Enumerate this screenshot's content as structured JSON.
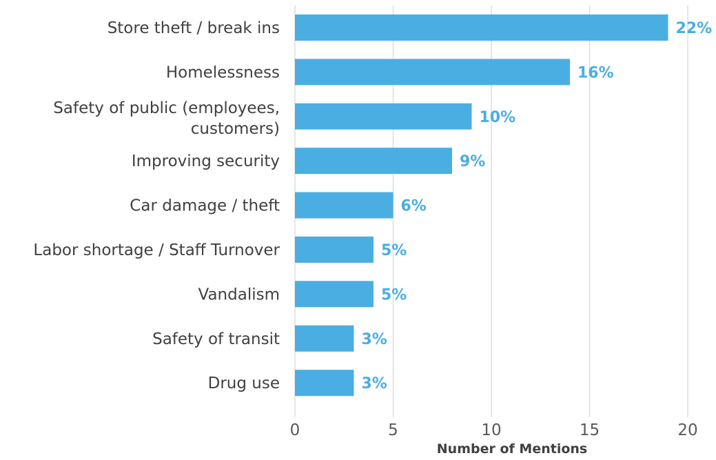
{
  "chart_data": {
    "type": "bar",
    "orientation": "horizontal",
    "categories": [
      "Store theft / break ins",
      "Homelessness",
      "Safety of public (employees, customers)",
      "Improving security",
      "Car damage / theft",
      "Labor shortage / Staff Turnover",
      "Vandalism",
      "Safety of transit",
      "Drug use"
    ],
    "values": [
      19,
      14,
      9,
      8,
      5,
      4,
      4,
      3,
      3
    ],
    "data_labels": [
      "22%",
      "16%",
      "10%",
      "9%",
      "6%",
      "5%",
      "5%",
      "3%",
      "3%"
    ],
    "title": "",
    "xlabel": "Number of Mentions",
    "ylabel": "",
    "xlim": [
      0,
      21
    ],
    "xticks": [
      0,
      5,
      10,
      15,
      20
    ],
    "grid": "vertical",
    "legend": "none",
    "bar_color": "#4aaee3",
    "label_color": "#4aaee3"
  }
}
